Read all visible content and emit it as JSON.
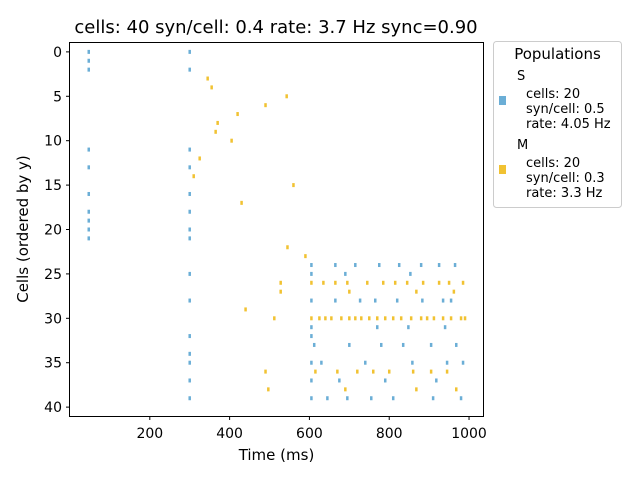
{
  "chart_data": {
    "type": "scatter",
    "title": "cells: 40   syn/cell: 0.4   rate: 3.7 Hz    sync=0.90",
    "xlabel": "Time (ms)",
    "ylabel": "Cells (ordered by y)",
    "xlim": [
      0,
      1035
    ],
    "ylim": [
      41,
      -1
    ],
    "y_inverted": true,
    "xticks": [
      200,
      400,
      600,
      800,
      1000
    ],
    "yticks": [
      0,
      5,
      10,
      15,
      20,
      25,
      30,
      35,
      40
    ],
    "grid": false,
    "legend": {
      "title": "Populations",
      "placement": "outside-right",
      "entries": [
        {
          "name": "S",
          "lines": [
            "cells: 20",
            "syn/cell: 0.5",
            "rate: 4.05 Hz"
          ]
        },
        {
          "name": "M",
          "lines": [
            "cells: 20",
            "syn/cell: 0.3",
            "rate: 3.3 Hz"
          ]
        }
      ]
    },
    "series": [
      {
        "name": "S",
        "color": "#6baed6",
        "points": [
          [
            47,
            0
          ],
          [
            47,
            1
          ],
          [
            47,
            2
          ],
          [
            47,
            11
          ],
          [
            47,
            13
          ],
          [
            47,
            16
          ],
          [
            47,
            18
          ],
          [
            47,
            19
          ],
          [
            47,
            20
          ],
          [
            47,
            21
          ],
          [
            300,
            0
          ],
          [
            300,
            2
          ],
          [
            300,
            11
          ],
          [
            300,
            13
          ],
          [
            300,
            16
          ],
          [
            300,
            18
          ],
          [
            300,
            20
          ],
          [
            300,
            21
          ],
          [
            300,
            25
          ],
          [
            300,
            28
          ],
          [
            300,
            32
          ],
          [
            300,
            34
          ],
          [
            300,
            35
          ],
          [
            300,
            37
          ],
          [
            300,
            39
          ],
          [
            605,
            24
          ],
          [
            605,
            25
          ],
          [
            605,
            28
          ],
          [
            605,
            31
          ],
          [
            605,
            32
          ],
          [
            605,
            35
          ],
          [
            605,
            37
          ],
          [
            605,
            39
          ],
          [
            612,
            33
          ],
          [
            630,
            35
          ],
          [
            645,
            39
          ],
          [
            665,
            24
          ],
          [
            665,
            28
          ],
          [
            675,
            37
          ],
          [
            690,
            25
          ],
          [
            695,
            39
          ],
          [
            700,
            33
          ],
          [
            715,
            24
          ],
          [
            727,
            28
          ],
          [
            740,
            35
          ],
          [
            755,
            39
          ],
          [
            765,
            28
          ],
          [
            770,
            31
          ],
          [
            775,
            24
          ],
          [
            780,
            33
          ],
          [
            790,
            37
          ],
          [
            810,
            39
          ],
          [
            820,
            28
          ],
          [
            825,
            24
          ],
          [
            835,
            33
          ],
          [
            848,
            31
          ],
          [
            853,
            25
          ],
          [
            858,
            35
          ],
          [
            880,
            24
          ],
          [
            883,
            28
          ],
          [
            905,
            33
          ],
          [
            910,
            39
          ],
          [
            918,
            37
          ],
          [
            925,
            24
          ],
          [
            935,
            28
          ],
          [
            940,
            31
          ],
          [
            945,
            35
          ],
          [
            955,
            28
          ],
          [
            965,
            24
          ],
          [
            968,
            33
          ],
          [
            980,
            39
          ],
          [
            985,
            35
          ]
        ]
      },
      {
        "name": "M",
        "color": "#f1c232",
        "points": [
          [
            325,
            12
          ],
          [
            310,
            14
          ],
          [
            345,
            3
          ],
          [
            355,
            4
          ],
          [
            365,
            9
          ],
          [
            370,
            8
          ],
          [
            405,
            10
          ],
          [
            420,
            7
          ],
          [
            430,
            17
          ],
          [
            440,
            29
          ],
          [
            490,
            6
          ],
          [
            490,
            36
          ],
          [
            497,
            38
          ],
          [
            512,
            30
          ],
          [
            528,
            26
          ],
          [
            528,
            27
          ],
          [
            543,
            5
          ],
          [
            560,
            15
          ],
          [
            545,
            22
          ],
          [
            590,
            23
          ],
          [
            605,
            26
          ],
          [
            605,
            30
          ],
          [
            615,
            36
          ],
          [
            625,
            30
          ],
          [
            635,
            26
          ],
          [
            640,
            30
          ],
          [
            655,
            30
          ],
          [
            665,
            26
          ],
          [
            670,
            36
          ],
          [
            680,
            30
          ],
          [
            690,
            38
          ],
          [
            695,
            26
          ],
          [
            700,
            27
          ],
          [
            700,
            30
          ],
          [
            715,
            30
          ],
          [
            720,
            36
          ],
          [
            730,
            30
          ],
          [
            745,
            26
          ],
          [
            750,
            30
          ],
          [
            760,
            36
          ],
          [
            770,
            30
          ],
          [
            785,
            26
          ],
          [
            790,
            30
          ],
          [
            800,
            36
          ],
          [
            810,
            30
          ],
          [
            815,
            26
          ],
          [
            830,
            30
          ],
          [
            845,
            26
          ],
          [
            855,
            30
          ],
          [
            860,
            36
          ],
          [
            868,
            27
          ],
          [
            868,
            38
          ],
          [
            880,
            30
          ],
          [
            885,
            26
          ],
          [
            895,
            30
          ],
          [
            905,
            36
          ],
          [
            912,
            30
          ],
          [
            925,
            26
          ],
          [
            935,
            30
          ],
          [
            945,
            36
          ],
          [
            950,
            26
          ],
          [
            955,
            30
          ],
          [
            962,
            27
          ],
          [
            968,
            38
          ],
          [
            980,
            30
          ],
          [
            985,
            26
          ],
          [
            990,
            30
          ]
        ]
      }
    ]
  }
}
